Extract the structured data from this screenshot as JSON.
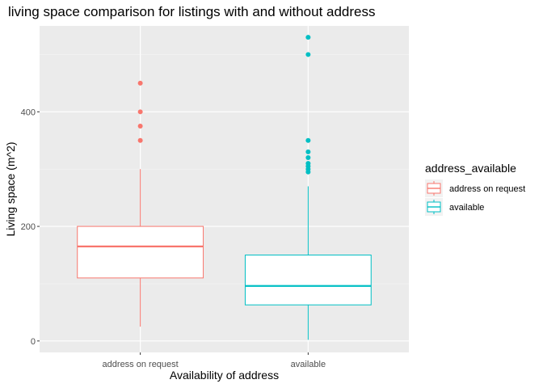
{
  "chart_data": {
    "type": "box",
    "title": "living space comparison for listings with and without address",
    "xlabel": "Availability of address",
    "ylabel": "Living space (m^2)",
    "categories": [
      "address on request",
      "available"
    ],
    "ylim": [
      -20,
      550
    ],
    "yticks": [
      0,
      200,
      400
    ],
    "grid": true,
    "legend": {
      "title": "address_available",
      "position": "right",
      "entries": [
        "address on request",
        "available"
      ]
    },
    "series": [
      {
        "name": "address on request",
        "color": "#F8766D",
        "whisker_low": 25,
        "q1": 110,
        "median": 165,
        "q3": 200,
        "whisker_high": 300,
        "outliers": [
          350,
          375,
          400,
          450
        ]
      },
      {
        "name": "available",
        "color": "#00BFC4",
        "whisker_low": 2,
        "q1": 63,
        "median": 96,
        "q3": 150,
        "whisker_high": 270,
        "outliers": [
          295,
          300,
          305,
          310,
          320,
          330,
          350,
          500,
          530
        ]
      }
    ]
  }
}
